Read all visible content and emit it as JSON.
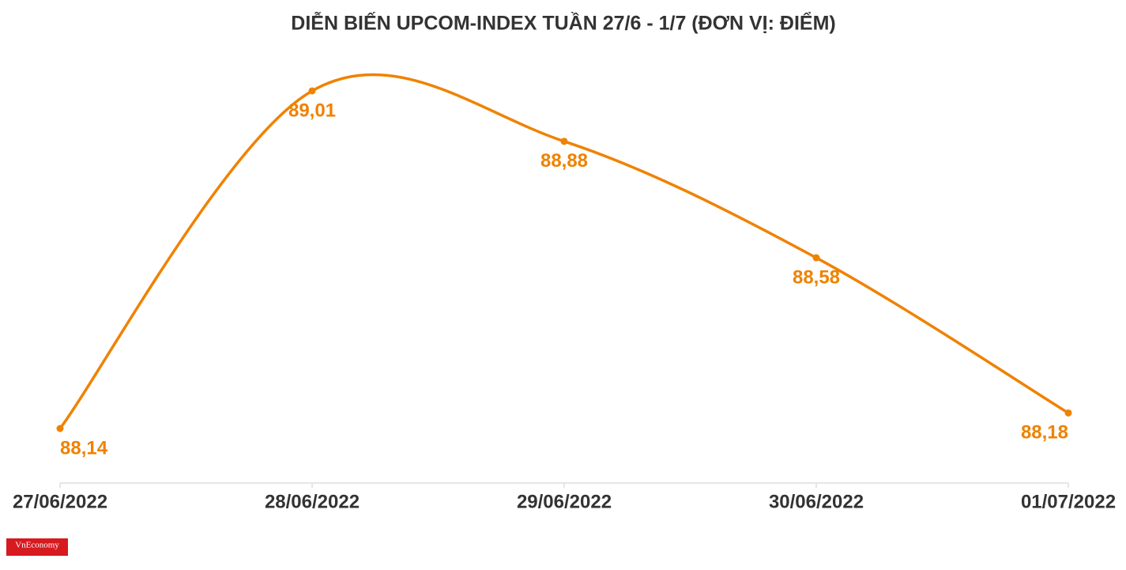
{
  "chart_data": {
    "type": "line",
    "title": "DIỄN BIẾN UPCOM-INDEX TUẦN 27/6 - 1/7 (ĐƠN VỊ: ĐIỂM)",
    "categories": [
      "27/06/2022",
      "28/06/2022",
      "29/06/2022",
      "30/06/2022",
      "01/07/2022"
    ],
    "series": [
      {
        "name": "UPCOM-Index",
        "color": "#ef8200",
        "values": [
          88.14,
          89.01,
          88.88,
          88.58,
          88.18
        ],
        "value_labels": [
          "88,14",
          "89,01",
          "88,88",
          "88,58",
          "88,18"
        ]
      }
    ],
    "logo": "VnEconomy"
  }
}
